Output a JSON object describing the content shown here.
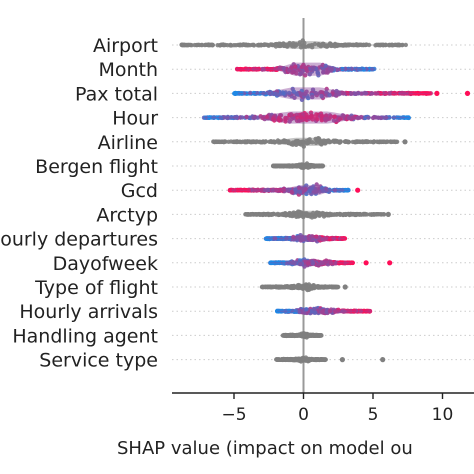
{
  "chart_data": {
    "type": "scatter",
    "subtype": "shap-beeswarm",
    "xlabel": "SHAP value (impact on model ou",
    "xlim": [
      -9.7,
      12.3
    ],
    "xticks": [
      -5,
      0,
      5,
      10
    ],
    "tick_labels": [
      "−5",
      "0",
      "5",
      "10"
    ],
    "grid": false,
    "colors": {
      "gray": "#808080",
      "low": "#1e88e5",
      "high": "#ff0d57",
      "zero_line": "#999999",
      "row_guides": "#cccccc",
      "axis": "#222222"
    },
    "features": [
      {
        "label": "Airport",
        "colored": false,
        "min": -8.8,
        "max": 7.4,
        "core": [
          -2.5,
          2.8
        ],
        "dense": [
          -0.8,
          1.0
        ],
        "peak": 0.1,
        "thickness": 14,
        "extras": []
      },
      {
        "label": "Month",
        "colored": true,
        "min": -4.8,
        "max": 5.2,
        "core": [
          -2.0,
          2.6
        ],
        "dense": [
          -0.6,
          1.2
        ],
        "peak": 0.4,
        "thickness": 24,
        "low_side": "right",
        "extras": []
      },
      {
        "label": "Pax total",
        "colored": true,
        "min": -5.0,
        "max": 9.2,
        "core": [
          -2.8,
          3.2
        ],
        "dense": [
          -0.8,
          1.2
        ],
        "peak": 0.1,
        "thickness": 22,
        "low_side": "left",
        "extras": [
          9.6,
          11.8,
          -4.9
        ]
      },
      {
        "label": "Hour",
        "colored": true,
        "min": -7.2,
        "max": 7.6,
        "core": [
          -3.8,
          4.0
        ],
        "dense": [
          -1.0,
          1.8
        ],
        "peak": 0.2,
        "thickness": 22,
        "low_side": "both",
        "extras": []
      },
      {
        "label": "Airline",
        "colored": false,
        "min": -6.5,
        "max": 6.8,
        "core": [
          -2.2,
          2.6
        ],
        "dense": [
          -0.6,
          0.9
        ],
        "peak": 0.1,
        "thickness": 15,
        "extras": [
          7.3
        ]
      },
      {
        "label": "Bergen flight",
        "colored": false,
        "min": -2.2,
        "max": 1.4,
        "core": [
          -0.4,
          0.6
        ],
        "dense": [
          -0.1,
          0.4
        ],
        "peak": 0.2,
        "thickness": 10,
        "extras": []
      },
      {
        "label": "Gcd",
        "colored": true,
        "min": -5.4,
        "max": 3.3,
        "core": [
          -1.8,
          2.0
        ],
        "dense": [
          -0.2,
          1.1
        ],
        "peak": 0.4,
        "thickness": 18,
        "low_side": "right",
        "extras": [
          3.9
        ]
      },
      {
        "label": "Arctyp",
        "colored": false,
        "min": -4.2,
        "max": 5.8,
        "core": [
          -1.5,
          2.2
        ],
        "dense": [
          -0.4,
          0.8
        ],
        "peak": 0.1,
        "thickness": 13,
        "extras": [
          6.1
        ]
      },
      {
        "label": "Hourly departures",
        "colored": true,
        "min": -2.8,
        "max": 3.0,
        "core": [
          -1.0,
          1.8
        ],
        "dense": [
          -0.3,
          0.9
        ],
        "peak": 0.2,
        "thickness": 12,
        "low_side": "left",
        "extras": []
      },
      {
        "label": "Dayofweek",
        "colored": true,
        "min": -2.4,
        "max": 3.6,
        "core": [
          -1.2,
          2.4
        ],
        "dense": [
          -0.3,
          1.0
        ],
        "peak": 0.2,
        "thickness": 12,
        "low_side": "left",
        "extras": [
          4.5,
          6.2
        ]
      },
      {
        "label": "Type of flight",
        "colored": false,
        "min": -3.0,
        "max": 2.5,
        "core": [
          -1.0,
          1.2
        ],
        "dense": [
          -0.2,
          0.6
        ],
        "peak": 0.1,
        "thickness": 12,
        "extras": [
          3.0
        ]
      },
      {
        "label": "Hourly arrivals",
        "colored": true,
        "min": -1.9,
        "max": 4.8,
        "core": [
          -0.6,
          2.8
        ],
        "dense": [
          0.0,
          1.2
        ],
        "peak": 0.3,
        "thickness": 13,
        "low_side": "left",
        "extras": []
      },
      {
        "label": "Handling agent",
        "colored": false,
        "min": -1.5,
        "max": 1.3,
        "core": [
          -0.3,
          0.4
        ],
        "dense": [
          -0.1,
          0.2
        ],
        "peak": 0.0,
        "thickness": 8,
        "extras": []
      },
      {
        "label": "Service type",
        "colored": false,
        "min": -2.0,
        "max": 1.6,
        "core": [
          -0.5,
          0.5
        ],
        "dense": [
          -0.2,
          0.2
        ],
        "peak": 0.0,
        "thickness": 9,
        "extras": [
          5.7,
          2.8
        ]
      }
    ]
  }
}
